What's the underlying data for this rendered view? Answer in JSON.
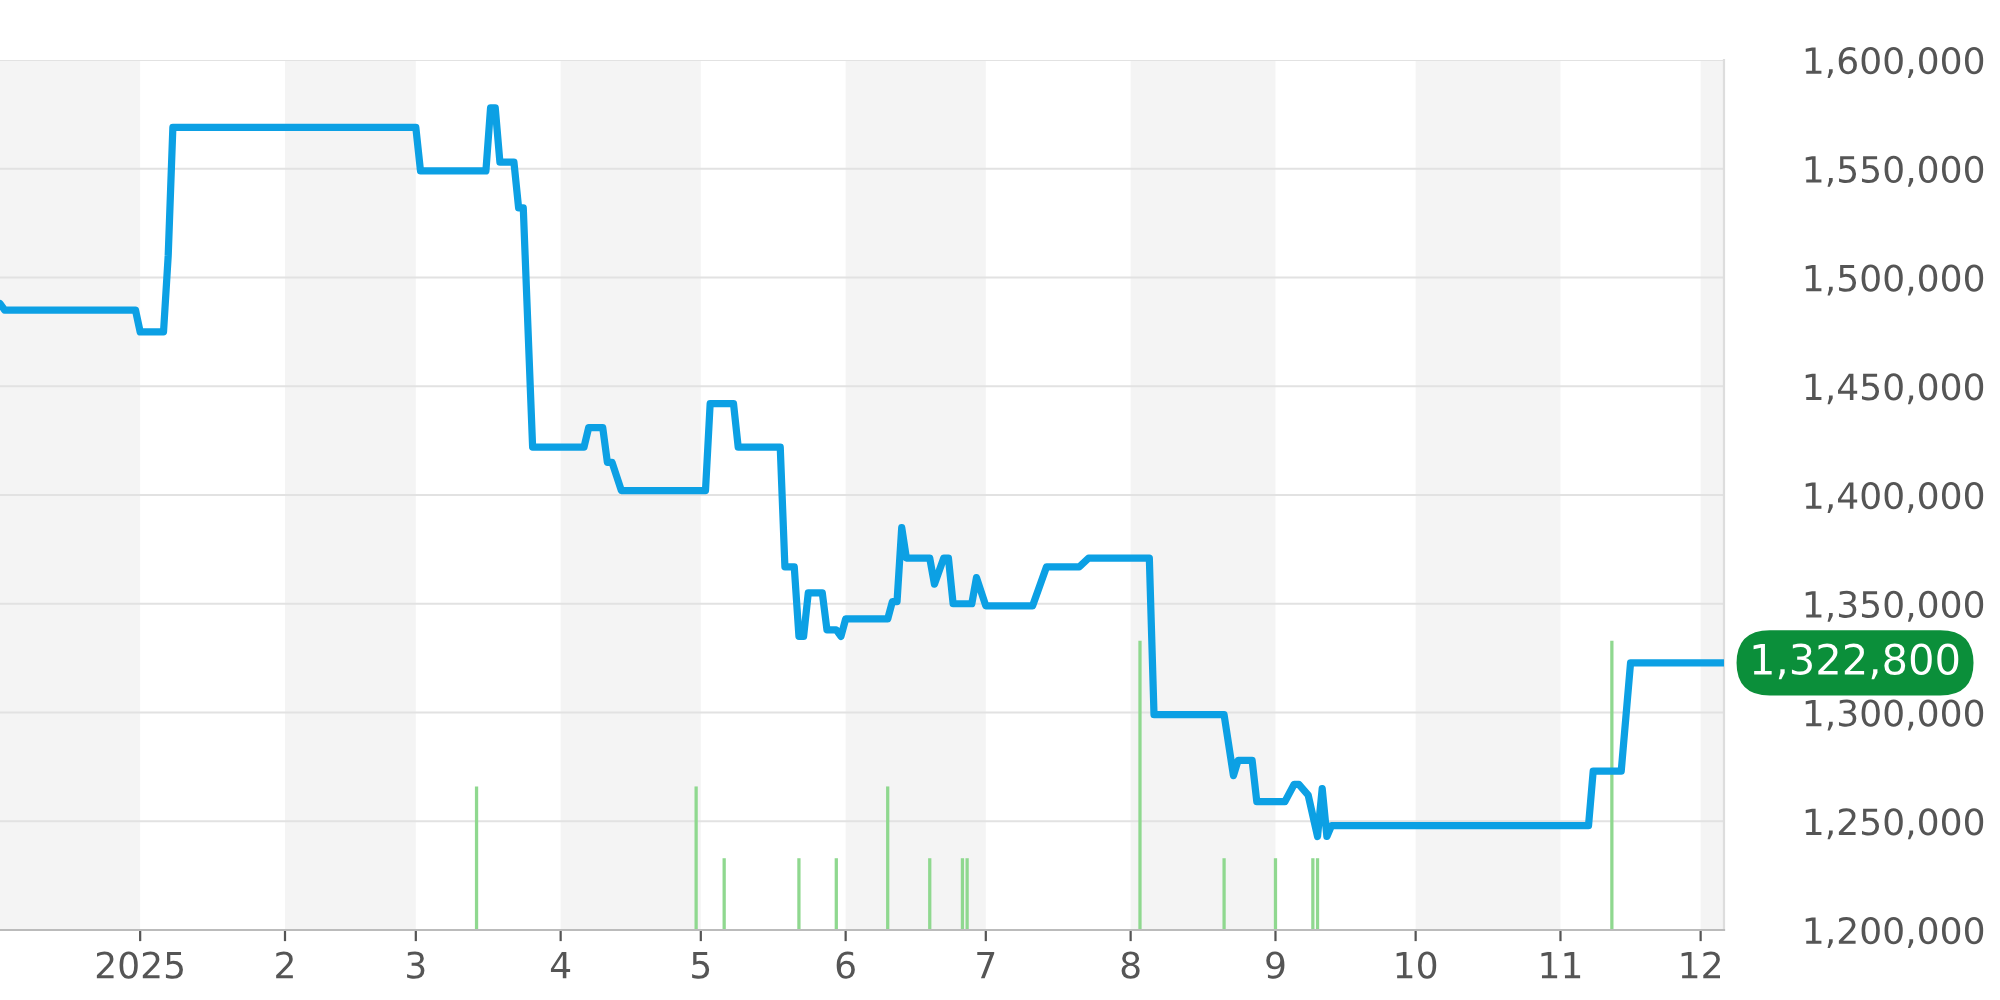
{
  "chart_data": {
    "type": "line",
    "xlim": [
      "2024-12-02",
      "2025-12-06"
    ],
    "ylim": [
      1200000,
      1600000
    ],
    "xticks": [
      {
        "value": "2025-01-01",
        "label": "2025"
      },
      {
        "value": "2025-02-01",
        "label": "2"
      },
      {
        "value": "2025-03-01",
        "label": "3"
      },
      {
        "value": "2025-04-01",
        "label": "4"
      },
      {
        "value": "2025-05-01",
        "label": "5"
      },
      {
        "value": "2025-06-01",
        "label": "6"
      },
      {
        "value": "2025-07-01",
        "label": "7"
      },
      {
        "value": "2025-08-01",
        "label": "8"
      },
      {
        "value": "2025-09-01",
        "label": "9"
      },
      {
        "value": "2025-10-01",
        "label": "10"
      },
      {
        "value": "2025-11-01",
        "label": "11"
      },
      {
        "value": "2025-12-01",
        "label": "12"
      }
    ],
    "yticks": [
      {
        "value": 1200000,
        "label": "1,200,000"
      },
      {
        "value": 1250000,
        "label": "1,250,000"
      },
      {
        "value": 1300000,
        "label": "1,300,000"
      },
      {
        "value": 1350000,
        "label": "1,350,000"
      },
      {
        "value": 1400000,
        "label": "1,400,000"
      },
      {
        "value": 1450000,
        "label": "1,450,000"
      },
      {
        "value": 1500000,
        "label": "1,500,000"
      },
      {
        "value": 1550000,
        "label": "1,550,000"
      },
      {
        "value": 1600000,
        "label": "1,600,000"
      }
    ],
    "grid": "y",
    "legend": false,
    "marker": "none",
    "line_style": "solid",
    "bands": [
      {
        "axis": "x",
        "from": "2024-12-02",
        "to": "2025-01-01",
        "color": "#f4f4f4"
      },
      {
        "axis": "x",
        "from": "2025-02-01",
        "to": "2025-03-01",
        "color": "#f4f4f4"
      },
      {
        "axis": "x",
        "from": "2025-04-01",
        "to": "2025-05-01",
        "color": "#f4f4f4"
      },
      {
        "axis": "x",
        "from": "2025-06-01",
        "to": "2025-07-01",
        "color": "#f4f4f4"
      },
      {
        "axis": "x",
        "from": "2025-08-01",
        "to": "2025-09-01",
        "color": "#f4f4f4"
      },
      {
        "axis": "x",
        "from": "2025-10-01",
        "to": "2025-11-01",
        "color": "#f4f4f4"
      },
      {
        "axis": "x",
        "from": "2025-12-01",
        "to": "2025-12-06",
        "color": "#f4f4f4"
      }
    ],
    "series": [
      {
        "type": "bar",
        "color": "#8fd88f",
        "x": [
          "2025-03-14",
          "2025-04-30",
          "2025-05-06",
          "2025-05-22",
          "2025-05-30",
          "2025-06-10",
          "2025-06-19",
          "2025-06-26",
          "2025-06-27",
          "2025-08-03",
          "2025-08-21",
          "2025-09-01",
          "2025-09-09",
          "2025-09-10",
          "2025-11-12"
        ],
        "values": [
          1266000,
          1266000,
          1233000,
          1233000,
          1233000,
          1266000,
          1233000,
          1233000,
          1233000,
          1333000,
          1233000,
          1233000,
          1233000,
          1233000,
          1333000
        ]
      },
      {
        "color": "#0ca0e4",
        "x": [
          "2024-12-02",
          "2024-12-03",
          "2024-12-31",
          "2025-01-01",
          "2025-01-06",
          "2025-01-07",
          "2025-01-08",
          "2025-03-01",
          "2025-03-02",
          "2025-03-16",
          "2025-03-17",
          "2025-03-18",
          "2025-03-19",
          "2025-03-22",
          "2025-03-23",
          "2025-03-24",
          "2025-03-26",
          "2025-04-06",
          "2025-04-07",
          "2025-04-10",
          "2025-04-11",
          "2025-04-12",
          "2025-04-14",
          "2025-05-02",
          "2025-05-03",
          "2025-05-08",
          "2025-05-09",
          "2025-05-18",
          "2025-05-19",
          "2025-05-21",
          "2025-05-22",
          "2025-05-23",
          "2025-05-24",
          "2025-05-27",
          "2025-05-28",
          "2025-05-30",
          "2025-05-31",
          "2025-06-01",
          "2025-06-10",
          "2025-06-11",
          "2025-06-12",
          "2025-06-13",
          "2025-06-14",
          "2025-06-19",
          "2025-06-20",
          "2025-06-22",
          "2025-06-23",
          "2025-06-24",
          "2025-06-28",
          "2025-06-29",
          "2025-07-01",
          "2025-07-11",
          "2025-07-14",
          "2025-07-21",
          "2025-07-23",
          "2025-08-05",
          "2025-08-06",
          "2025-08-21",
          "2025-08-23",
          "2025-08-24",
          "2025-08-27",
          "2025-08-28",
          "2025-09-03",
          "2025-09-05",
          "2025-09-06",
          "2025-09-08",
          "2025-09-10",
          "2025-09-11",
          "2025-09-12",
          "2025-09-13",
          "2025-11-07",
          "2025-11-08",
          "2025-11-14",
          "2025-11-16",
          "2025-12-06"
        ],
        "values": [
          1488000,
          1485000,
          1485000,
          1475000,
          1475000,
          1510000,
          1569000,
          1569000,
          1549000,
          1549000,
          1578000,
          1578000,
          1553000,
          1553000,
          1532000,
          1532000,
          1422000,
          1422000,
          1431000,
          1431000,
          1415000,
          1415000,
          1402000,
          1402000,
          1442000,
          1442000,
          1422000,
          1422000,
          1367000,
          1367000,
          1335000,
          1335000,
          1355000,
          1355000,
          1338000,
          1338000,
          1335000,
          1343000,
          1343000,
          1351000,
          1351000,
          1385000,
          1371000,
          1371000,
          1359000,
          1371000,
          1371000,
          1350000,
          1350000,
          1362000,
          1349000,
          1349000,
          1367000,
          1367000,
          1371000,
          1371000,
          1299000,
          1299000,
          1271000,
          1278000,
          1278000,
          1259000,
          1259000,
          1267000,
          1267000,
          1262000,
          1243000,
          1265000,
          1243000,
          1248000,
          1248000,
          1273000,
          1273000,
          1322800,
          1322800
        ]
      }
    ],
    "annotations": [
      {
        "text": "1,322,800",
        "x": "2025-12-06",
        "y": 1322800
      }
    ]
  }
}
